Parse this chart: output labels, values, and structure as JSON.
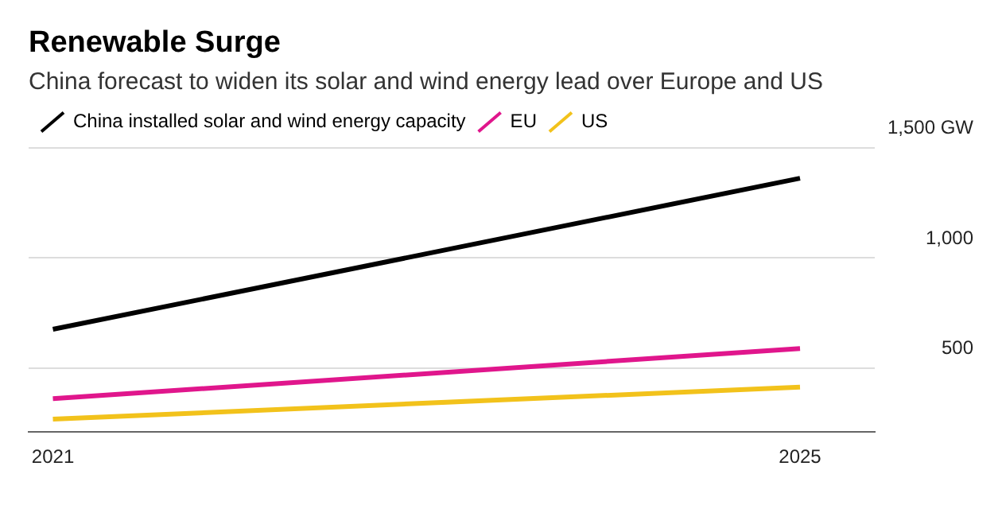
{
  "chart_data": {
    "type": "line",
    "title": "Renewable Surge",
    "subtitle": "China forecast to widen its solar and wind energy lead over Europe and US",
    "x": [
      2021,
      2025
    ],
    "series": [
      {
        "name": "China installed solar and wind energy capacity",
        "color": "#000000",
        "values": [
          676,
          1361
        ]
      },
      {
        "name": "EU",
        "color": "#e0168c",
        "values": [
          361,
          589
        ]
      },
      {
        "name": "US",
        "color": "#f2c21b",
        "values": [
          268,
          414
        ]
      }
    ],
    "xlim": [
      2020.87,
      2025.4
    ],
    "xticks": [
      2021,
      2025
    ],
    "ylim": [
      210,
      1500
    ],
    "yticks": [
      500,
      {
        "value": 1000,
        "label": "1,000"
      },
      {
        "value": 1500,
        "label": "1,500 GW"
      }
    ],
    "grid": "y",
    "legend": "top left",
    "marker": "none",
    "line_style": "solid"
  }
}
